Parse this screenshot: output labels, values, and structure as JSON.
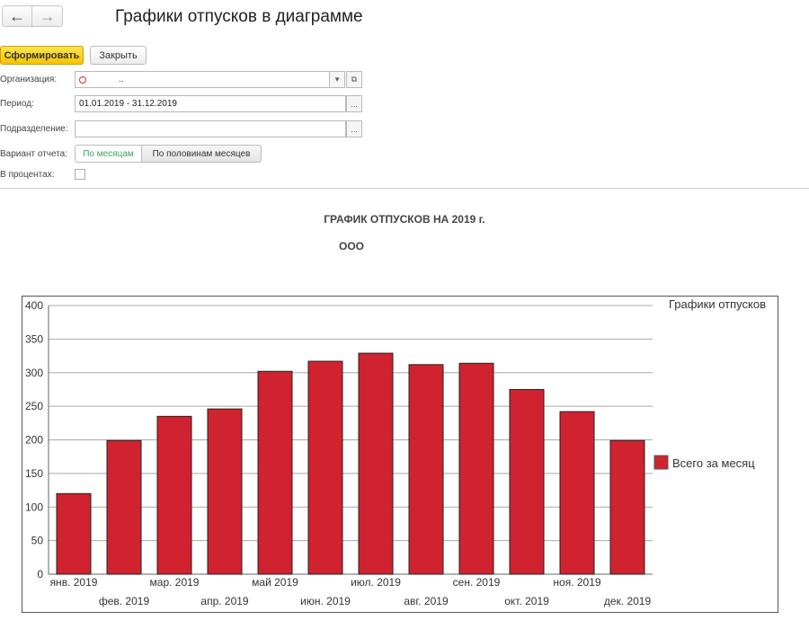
{
  "header": {
    "back_icon": "←",
    "forward_icon": "→",
    "title": "Графики отпусков в диаграмме"
  },
  "toolbar": {
    "form_label": "Сформировать",
    "close_label": "Закрыть"
  },
  "form": {
    "org_label": "Организация:",
    "org_value": "..",
    "period_label": "Период:",
    "period_value": "01.01.2019 - 31.12.2019",
    "dept_label": "Подразделение:",
    "dept_value": "",
    "variant_label": "Вариант отчета:",
    "variant_options": [
      "По месяцам",
      "По половинам месяцев"
    ],
    "variant_selected": "По месяцам",
    "percent_label": "В процентах:",
    "percent_checked": false,
    "ellipsis": "...",
    "dropdown_icon": "▾",
    "open_icon": "⧉"
  },
  "report": {
    "title": "ГРАФИК ОТПУСКОВ НА 2019 г.",
    "org": "ООО"
  },
  "chart_data": {
    "type": "bar",
    "title": "Графики отпусков",
    "categories": [
      "янв. 2019",
      "фев. 2019",
      "мар. 2019",
      "апр. 2019",
      "май 2019",
      "июн. 2019",
      "июл. 2019",
      "авг. 2019",
      "сен. 2019",
      "окт. 2019",
      "ноя. 2019",
      "дек. 2019"
    ],
    "series": [
      {
        "name": "Всего за месяц",
        "values": [
          120,
          199,
          235,
          246,
          302,
          317,
          329,
          312,
          314,
          275,
          242,
          199
        ],
        "color": "#d0232f"
      }
    ],
    "ylim": [
      0,
      400
    ],
    "yticks": [
      0,
      50,
      100,
      150,
      200,
      250,
      300,
      350,
      400
    ],
    "grid": true,
    "legend_position": "right"
  }
}
